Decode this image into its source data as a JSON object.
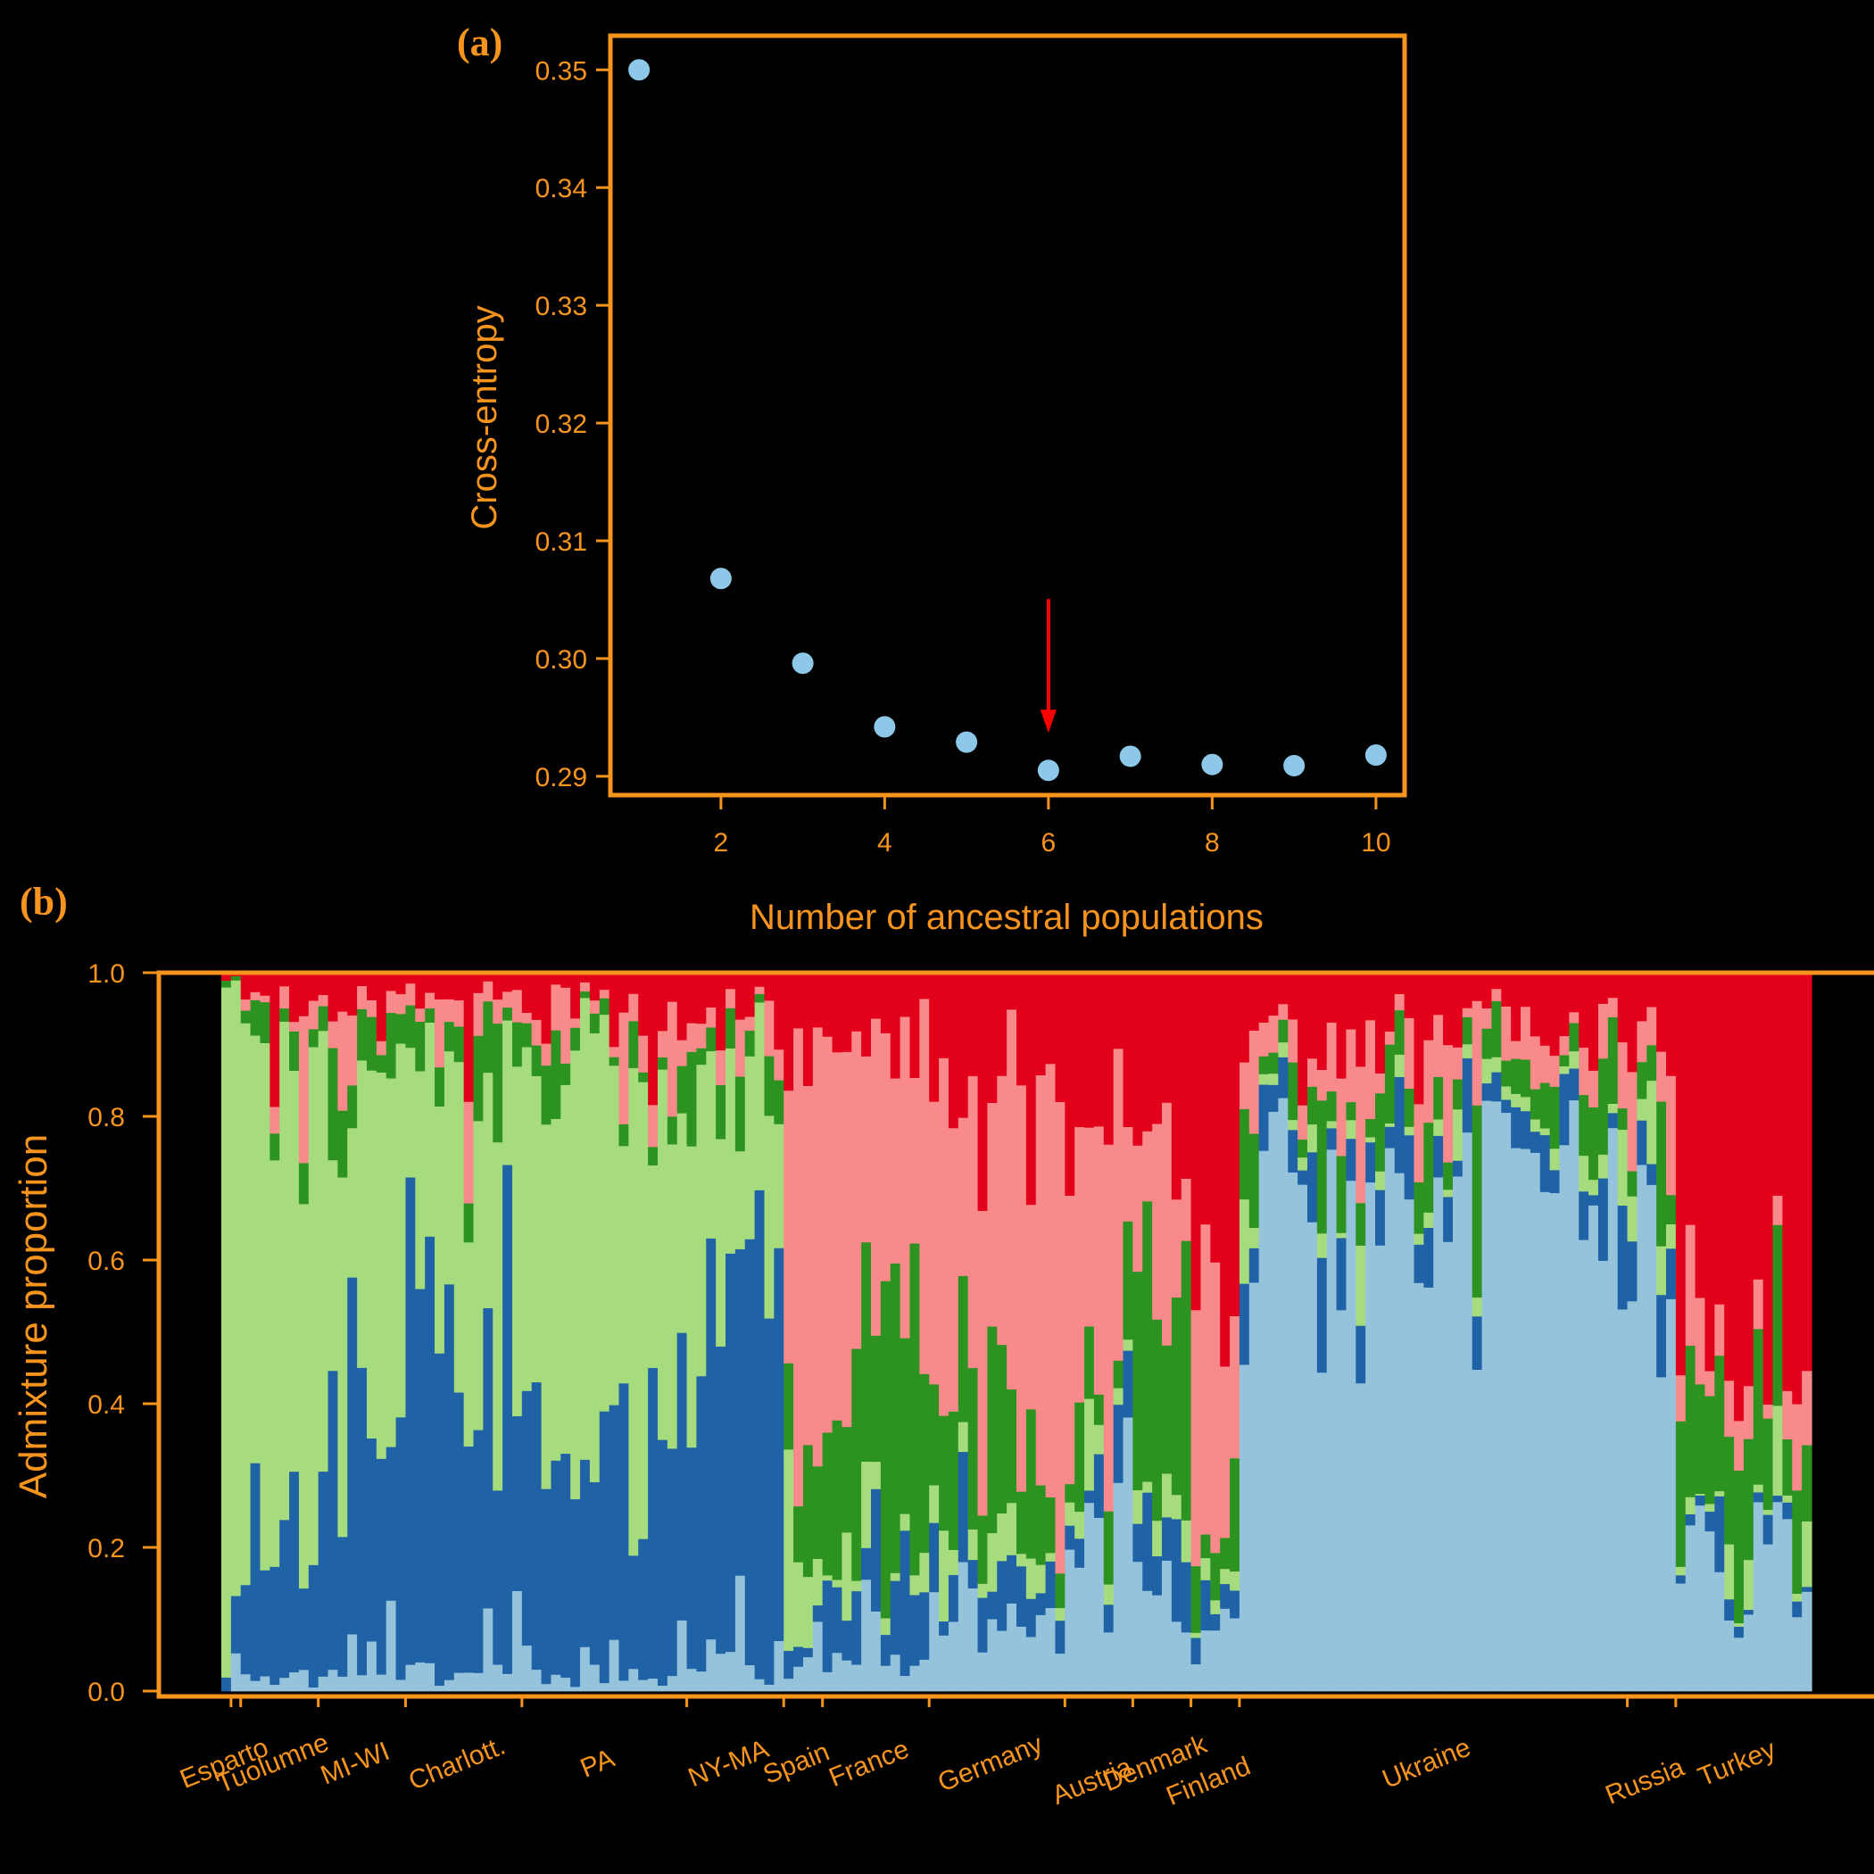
{
  "colors": {
    "frame": "#f7941d",
    "point": "#8dc8e8",
    "arrow": "#ff0000",
    "k_light_green": "#a6dc7e",
    "k_dark_blue": "#1f62a6",
    "k_light_pink": "#f88a8c",
    "k_dark_green": "#2c9320",
    "k_red": "#e2001a",
    "k_light_blue": "#95c3dc"
  },
  "chart_data": [
    {
      "panel_label": "(a)",
      "type": "scatter",
      "xlabel": "Number of ancestral populations",
      "ylabel": "Cross-entropy",
      "x": [
        1,
        2,
        3,
        4,
        5,
        6,
        7,
        8,
        9,
        10
      ],
      "y": [
        0.35,
        0.3068,
        0.2996,
        0.2942,
        0.2929,
        0.2905,
        0.2917,
        0.291,
        0.2909,
        0.2918
      ],
      "xticks": [
        "2",
        "4",
        "6",
        "8",
        "10"
      ],
      "yticks": [
        "0.29",
        "0.30",
        "0.31",
        "0.32",
        "0.33",
        "0.34",
        "0.35"
      ],
      "xlim": [
        0.65,
        10.35
      ],
      "ylim": [
        0.2884,
        0.3529
      ],
      "arrow_at_x": 6
    },
    {
      "panel_label": "(b)",
      "type": "bar",
      "stacked": true,
      "ylabel": "Admixture proportion",
      "yticks": [
        "0.0",
        "0.2",
        "0.4",
        "0.6",
        "0.8",
        "1.0"
      ],
      "ylim": [
        0,
        1
      ],
      "components_bottom_to_top": [
        "k_light_blue",
        "k_dark_blue",
        "k_light_green",
        "k_dark_green",
        "k_light_pink",
        "k_red"
      ],
      "populations": [
        {
          "name": "Esparto",
          "n": 2,
          "profile": [
            0.0,
            0.02,
            0.95,
            0.02,
            0.0,
            0.01
          ]
        },
        {
          "name": "Tuolumne",
          "n": 8,
          "profile": [
            0.02,
            0.18,
            0.7,
            0.03,
            0.02,
            0.05
          ]
        },
        {
          "name": "MI-WI",
          "n": 9,
          "profile": [
            0.02,
            0.35,
            0.48,
            0.08,
            0.03,
            0.04
          ]
        },
        {
          "name": "Charlott.",
          "n": 12,
          "profile": [
            0.02,
            0.55,
            0.32,
            0.05,
            0.03,
            0.03
          ]
        },
        {
          "name": "PA",
          "n": 17,
          "profile": [
            0.02,
            0.32,
            0.55,
            0.03,
            0.04,
            0.04
          ]
        },
        {
          "name": "NY-MA",
          "n": 10,
          "profile": [
            0.04,
            0.58,
            0.25,
            0.04,
            0.03,
            0.06
          ]
        },
        {
          "name": "Spain",
          "n": 4,
          "profile": [
            0.03,
            0.02,
            0.08,
            0.2,
            0.55,
            0.12
          ]
        },
        {
          "name": "France",
          "n": 11,
          "profile": [
            0.05,
            0.08,
            0.02,
            0.3,
            0.45,
            0.1
          ]
        },
        {
          "name": "Germany",
          "n": 14,
          "profile": [
            0.1,
            0.06,
            0.04,
            0.15,
            0.5,
            0.15
          ]
        },
        {
          "name": "Austria",
          "n": 7,
          "profile": [
            0.25,
            0.03,
            0.05,
            0.07,
            0.4,
            0.2
          ]
        },
        {
          "name": "Denmark",
          "n": 6,
          "profile": [
            0.12,
            0.05,
            0.05,
            0.25,
            0.18,
            0.35
          ]
        },
        {
          "name": "Finland",
          "n": 5,
          "profile": [
            0.08,
            0.03,
            0.02,
            0.05,
            0.35,
            0.47
          ]
        },
        {
          "name": "Ukraine",
          "n": 40,
          "profile": [
            0.75,
            0.05,
            0.02,
            0.05,
            0.05,
            0.08
          ]
        },
        {
          "name": "Russia",
          "n": 5,
          "profile": [
            0.7,
            0.05,
            0.03,
            0.05,
            0.07,
            0.1
          ]
        },
        {
          "name": "Turkey",
          "n": 14,
          "profile": [
            0.18,
            0.02,
            0.01,
            0.18,
            0.06,
            0.55
          ]
        }
      ]
    }
  ]
}
